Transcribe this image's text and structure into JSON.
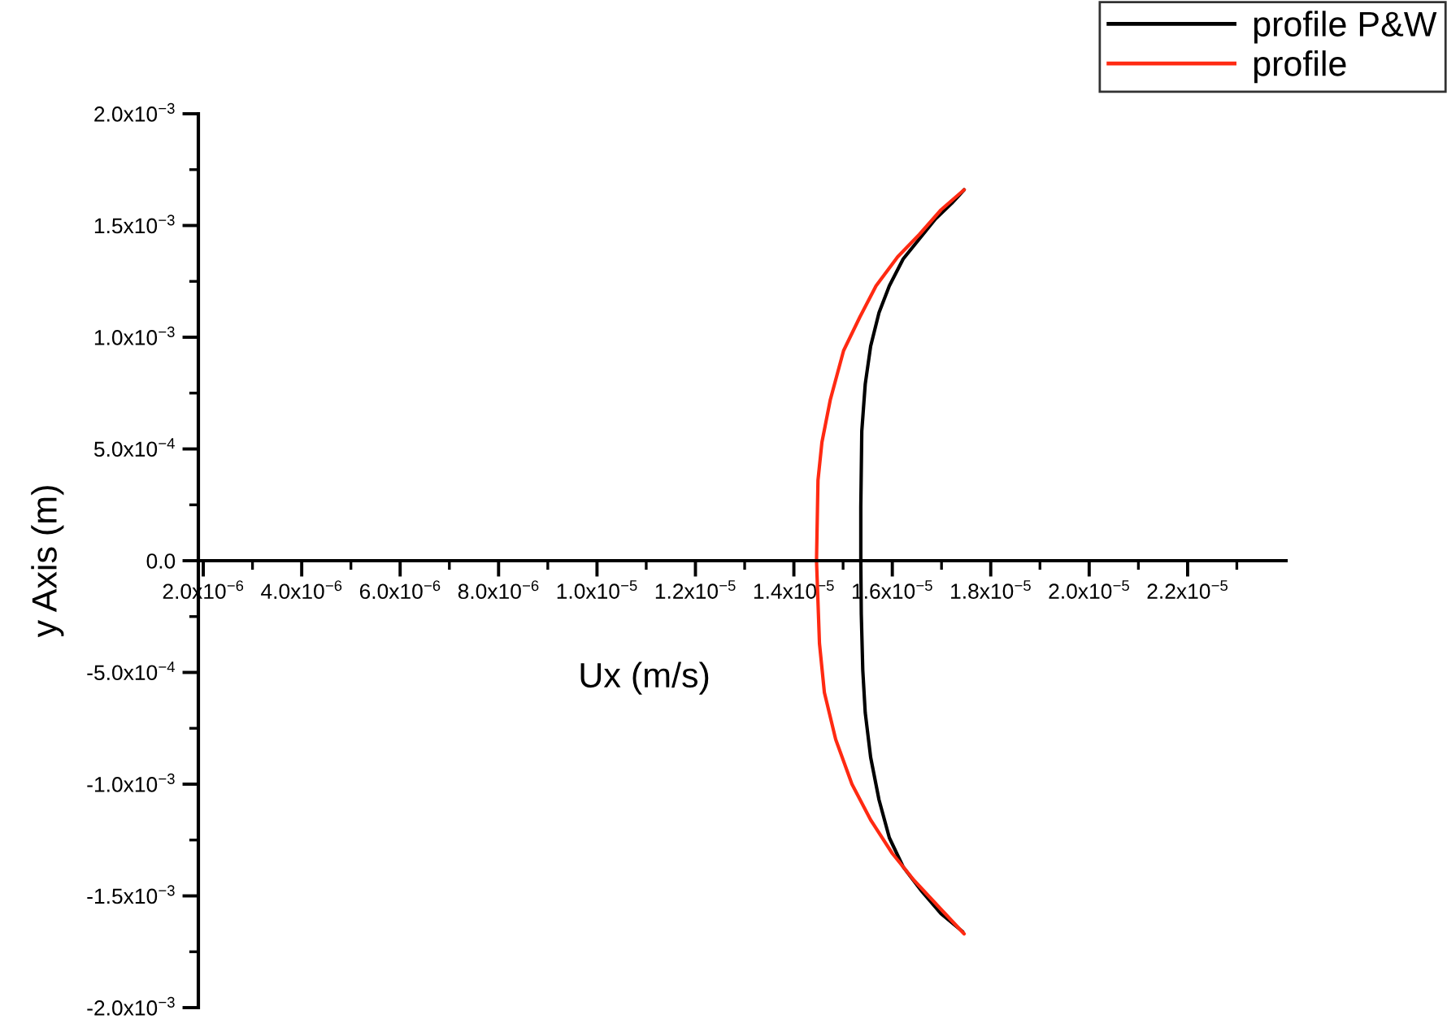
{
  "chart_data": {
    "type": "line",
    "xlabel": "Ux (m/s)",
    "ylabel": "y Axis (m)",
    "series": [
      {
        "name": "profile P&W",
        "color": "#000000",
        "x": [
          1.746e-05,
          1.721e-05,
          1.688e-05,
          1.655e-05,
          1.622e-05,
          1.594e-05,
          1.573e-05,
          1.556e-05,
          1.545e-05,
          1.538e-05,
          1.536e-05,
          1.536e-05,
          1.537e-05,
          1.54e-05,
          1.545e-05,
          1.556e-05,
          1.573e-05,
          1.594e-05,
          1.622e-05,
          1.66e-05,
          1.699e-05,
          1.743e-05
        ],
        "values": [
          0.00166,
          0.0016,
          0.00153,
          0.00144,
          0.00135,
          0.00123,
          0.00111,
          0.00096,
          0.00079,
          0.00058,
          0.00024,
          0,
          -0.00024,
          -0.00049,
          -0.00068,
          -0.00088,
          -0.00107,
          -0.00124,
          -0.00137,
          -0.00148,
          -0.00158,
          -0.00166
        ]
      },
      {
        "name": "profile",
        "color": "#ff2a12",
        "x": [
          1.746e-05,
          1.699e-05,
          1.655e-05,
          1.611e-05,
          1.567e-05,
          1.534e-05,
          1.501e-05,
          1.474e-05,
          1.457e-05,
          1.449e-05,
          1.446e-05,
          1.452e-05,
          1.462e-05,
          1.485e-05,
          1.518e-05,
          1.556e-05,
          1.6e-05,
          1.644e-05,
          1.699e-05,
          1.746e-05
        ],
        "values": [
          0.00166,
          0.00157,
          0.00146,
          0.00136,
          0.00123,
          0.00109,
          0.00094,
          0.00072,
          0.00053,
          0.00036,
          0,
          -0.00037,
          -0.00059,
          -0.0008,
          -0.001,
          -0.00116,
          -0.00131,
          -0.00143,
          -0.00156,
          -0.00167
        ]
      }
    ],
    "xlim": [
      1.9e-06,
      2.4e-05
    ],
    "ylim": [
      -0.002,
      0.002
    ],
    "xticks": [
      {
        "value": 2e-06,
        "label": "2.0x10$^{−6}$"
      },
      {
        "value": 3e-06,
        "label": null
      },
      {
        "value": 4e-06,
        "label": "4.0x10$^{−6}$"
      },
      {
        "value": 5e-06,
        "label": null
      },
      {
        "value": 6e-06,
        "label": "6.0x10$^{−6}$"
      },
      {
        "value": 7e-06,
        "label": null
      },
      {
        "value": 8e-06,
        "label": "8.0x10$^{−6}$"
      },
      {
        "value": 9e-06,
        "label": null
      },
      {
        "value": 1e-05,
        "label": "1.0x10$^{−5}$"
      },
      {
        "value": 1.1e-05,
        "label": null
      },
      {
        "value": 1.2e-05,
        "label": "1.2x10$^{−5}$"
      },
      {
        "value": 1.3e-05,
        "label": null
      },
      {
        "value": 1.4e-05,
        "label": "1.4x10$^{−5}$"
      },
      {
        "value": 1.5e-05,
        "label": null
      },
      {
        "value": 1.6e-05,
        "label": "1.6x10$^{−5}$"
      },
      {
        "value": 1.7e-05,
        "label": null
      },
      {
        "value": 1.8e-05,
        "label": "1.8x10$^{−5}$"
      },
      {
        "value": 1.9e-05,
        "label": null
      },
      {
        "value": 2e-05,
        "label": "2.0x10$^{−5}$"
      },
      {
        "value": 2.1e-05,
        "label": null
      },
      {
        "value": 2.2e-05,
        "label": "2.2x10$^{−5}$"
      },
      {
        "value": 2.3e-05,
        "label": null
      }
    ],
    "yticks": [
      {
        "value": -0.002,
        "label": "-2.0x10$^{−3}$"
      },
      {
        "value": -0.00175,
        "label": null
      },
      {
        "value": -0.0015,
        "label": "-1.5x10$^{−3}$"
      },
      {
        "value": -0.00125,
        "label": null
      },
      {
        "value": -0.001,
        "label": "-1.0x10$^{−3}$"
      },
      {
        "value": -0.00075,
        "label": null
      },
      {
        "value": -0.0005,
        "label": "-5.0x10$^{−4}$"
      },
      {
        "value": -0.00025,
        "label": null
      },
      {
        "value": 0,
        "label": "0.0"
      },
      {
        "value": 0.00025,
        "label": null
      },
      {
        "value": 0.0005,
        "label": "5.0x10$^{−4}$"
      },
      {
        "value": 0.00075,
        "label": null
      },
      {
        "value": 0.001,
        "label": "1.0x10$^{−3}$"
      },
      {
        "value": 0.00125,
        "label": null
      },
      {
        "value": 0.0015,
        "label": "1.5x10$^{−3}$"
      },
      {
        "value": 0.00175,
        "label": null
      },
      {
        "value": 0.002,
        "label": "2.0x10$^{−3}$"
      }
    ],
    "legend": "top right"
  }
}
